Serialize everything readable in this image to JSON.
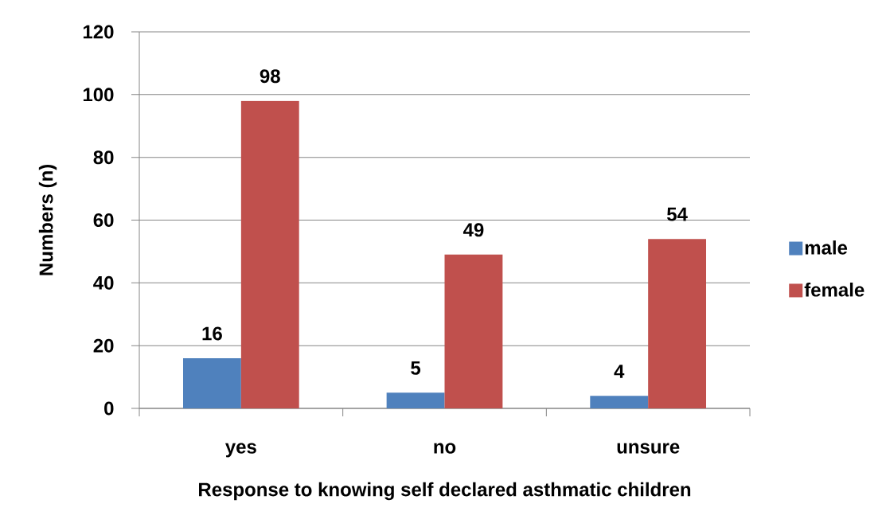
{
  "chart_data": {
    "type": "bar",
    "xlabel": "Response to knowing self declared asthmatic children",
    "ylabel": "Numbers (n)",
    "categories": [
      "yes",
      "no",
      "unsure"
    ],
    "series": [
      {
        "name": "male",
        "color": "#4f81bd",
        "values": [
          16,
          5,
          4
        ]
      },
      {
        "name": "female",
        "color": "#c0504d",
        "values": [
          98,
          49,
          54
        ]
      }
    ],
    "ylim": [
      0,
      120
    ],
    "yticks": [
      0,
      20,
      40,
      60,
      80,
      100,
      120
    ],
    "grid": "y",
    "legend": "right",
    "data_labels": true
  }
}
